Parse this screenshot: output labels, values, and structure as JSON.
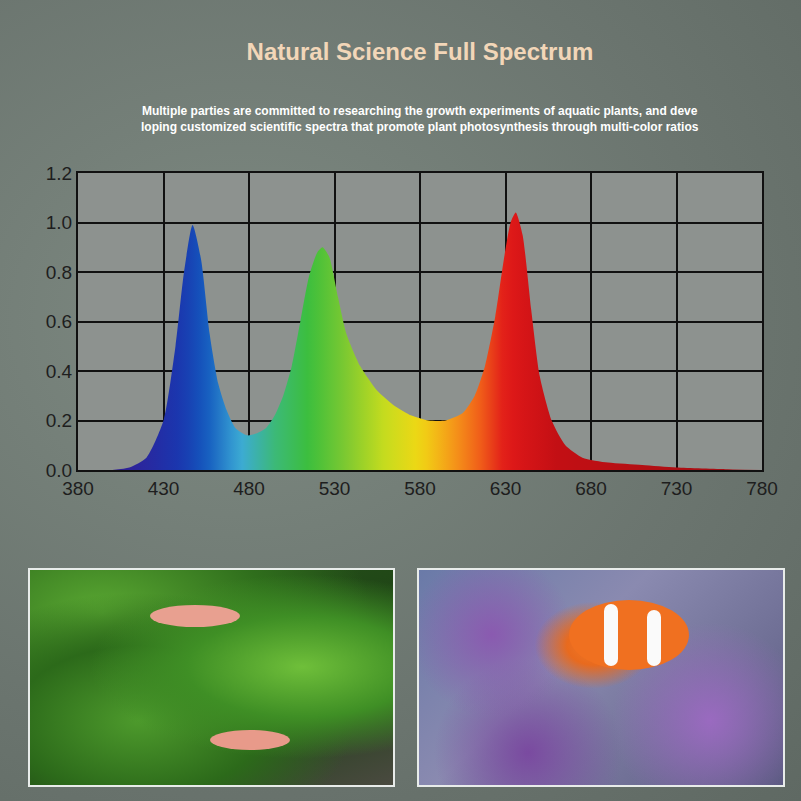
{
  "chart_data": {
    "type": "area",
    "title": "Natural Science Full Spectrum",
    "subtitle": [
      "Multiple parties are committed to researching the growth experiments of aquatic plants, and deve",
      "loping customized scientific spectra that promote plant photosynthesis through multi-color ratios"
    ],
    "x": [
      400,
      410,
      420,
      430,
      437,
      442,
      447,
      452,
      457,
      462,
      467,
      472,
      479,
      485,
      490,
      495,
      500,
      505,
      510,
      515,
      520,
      523,
      527,
      532,
      537,
      545,
      555,
      565,
      575,
      585,
      595,
      605,
      612,
      618,
      624,
      629,
      633,
      636,
      640,
      645,
      650,
      657,
      665,
      675,
      690,
      710,
      730,
      760,
      780
    ],
    "values": [
      0,
      0.01,
      0.05,
      0.2,
      0.5,
      0.8,
      0.99,
      0.85,
      0.55,
      0.35,
      0.24,
      0.17,
      0.14,
      0.15,
      0.17,
      0.22,
      0.3,
      0.42,
      0.6,
      0.78,
      0.88,
      0.9,
      0.86,
      0.7,
      0.55,
      0.42,
      0.32,
      0.26,
      0.22,
      0.2,
      0.2,
      0.23,
      0.3,
      0.42,
      0.62,
      0.85,
      1.0,
      1.04,
      0.95,
      0.65,
      0.38,
      0.2,
      0.1,
      0.05,
      0.03,
      0.02,
      0.01,
      0.003,
      0
    ],
    "xlim": [
      380,
      780
    ],
    "xticks": [
      380,
      430,
      480,
      530,
      580,
      630,
      680,
      730,
      780
    ],
    "ylim": [
      0,
      1.2
    ],
    "yticks": [
      {
        "value": 0,
        "label": "0.0"
      },
      0.2,
      0.4,
      0.6,
      0.8,
      {
        "value": 1,
        "label": "1.0"
      },
      1.2
    ],
    "grid": true
  }
}
